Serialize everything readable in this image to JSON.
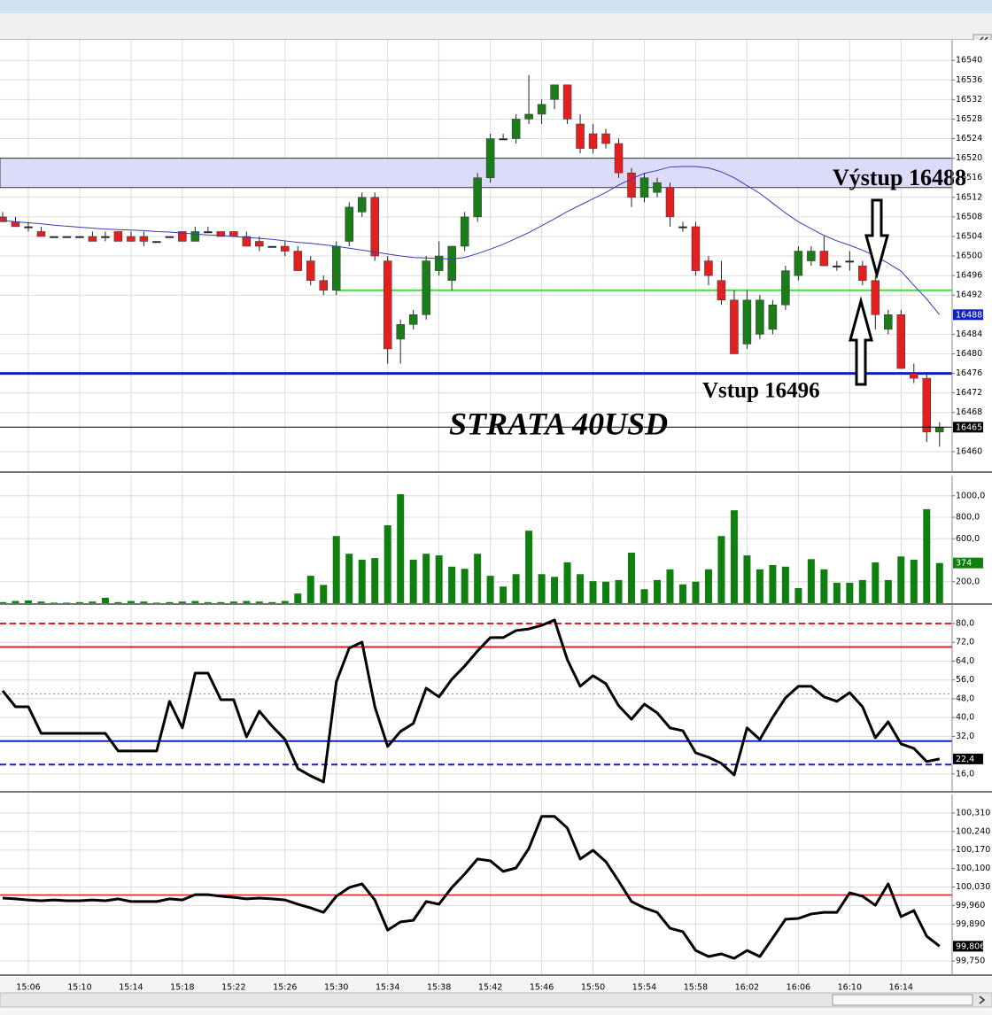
{
  "chart_data": [
    {
      "type": "candlestick",
      "open": [
        16508,
        16507,
        16506,
        16505,
        16504,
        16504,
        16504,
        16504,
        16504,
        16505,
        16504,
        16504,
        16503,
        16504,
        16505,
        16503,
        16505,
        16505,
        16505,
        16504,
        16503,
        16502,
        16502,
        16501,
        16499,
        16495,
        16493,
        16503,
        16509,
        16512,
        16499,
        16483,
        16486,
        16488,
        16497,
        16495,
        16502,
        16508,
        16516,
        16524,
        16524,
        16528,
        16529,
        16532,
        16535,
        16527,
        16525,
        16525,
        16523,
        16517,
        16512,
        16513,
        16514,
        16506,
        16506,
        16499,
        16495,
        16491,
        16482,
        16484,
        16485,
        16490,
        16496,
        16499,
        16501,
        16498,
        16499,
        16498,
        16495,
        16485,
        16488,
        16476,
        16475,
        16464
      ],
      "high": [
        16509,
        16508,
        16507,
        16506,
        16504,
        16504,
        16504,
        16505,
        16505,
        16505,
        16505,
        16505,
        16503,
        16504,
        16505,
        16506,
        16506,
        16505,
        16505,
        16505,
        16504,
        16502,
        16503,
        16502,
        16500,
        16496,
        16503,
        16511,
        16513,
        16513,
        16500,
        16487,
        16489,
        16500,
        16503,
        16502,
        16509,
        16517,
        16525,
        16525,
        16529,
        16537,
        16532,
        16535,
        16535,
        16529,
        16527,
        16526,
        16524,
        16518,
        16517,
        16516,
        16515,
        16507,
        16507,
        16500,
        16499,
        16493,
        16493,
        16492,
        16491,
        16498,
        16502,
        16502,
        16504,
        16499,
        16501,
        16499,
        16496,
        16489,
        16489,
        16478,
        16476,
        16466
      ],
      "low": [
        16507,
        16506,
        16505,
        16504,
        16504,
        16504,
        16504,
        16503,
        16503,
        16503,
        16503,
        16502,
        16503,
        16504,
        16503,
        16503,
        16505,
        16504,
        16504,
        16502,
        16501,
        16502,
        16500,
        16497,
        16494,
        16492,
        16492,
        16502,
        16508,
        16499,
        16478,
        16478,
        16485,
        16487,
        16496,
        16493,
        16501,
        16507,
        16515,
        16524,
        16523,
        16527,
        16527,
        16530,
        16527,
        16521,
        16521,
        16522,
        16516,
        16510,
        16511,
        16512,
        16506,
        16505,
        16496,
        16494,
        16490,
        16480,
        16481,
        16483,
        16484,
        16489,
        16495,
        16498,
        16498,
        16497,
        16497,
        16494,
        16485,
        16484,
        16477,
        16474,
        16462,
        16461
      ],
      "close": [
        16507,
        16506,
        16506,
        16504,
        16504,
        16504,
        16504,
        16503,
        16504,
        16503,
        16503,
        16503,
        16503,
        16504,
        16503,
        16505,
        16505,
        16504,
        16504,
        16502,
        16502,
        16502,
        16501,
        16497,
        16495,
        16493,
        16502,
        16510,
        16512,
        16500,
        16481,
        16486,
        16488,
        16499,
        16500,
        16502,
        16508,
        16516,
        16524,
        16524,
        16528,
        16529,
        16531,
        16535,
        16528,
        16522,
        16522,
        16523,
        16517,
        16512,
        16516,
        16515,
        16508,
        16506,
        16497,
        16496,
        16491,
        16480,
        16491,
        16491,
        16490,
        16497,
        16501,
        16501,
        16498,
        16498,
        16499,
        16495,
        16488,
        16488,
        16477,
        16475,
        16464,
        16465
      ],
      "up_color": "#1a7d1a",
      "down_color": "#e32020",
      "ma": {
        "color": "#3a3ab4",
        "values": [
          16507.3,
          16507.0,
          16506.8,
          16506.6,
          16506.3,
          16506.1,
          16505.9,
          16505.7,
          16505.5,
          16505.4,
          16505.3,
          16505.2,
          16505.0,
          16504.9,
          16504.7,
          16504.5,
          16504.3,
          16504.2,
          16504.0,
          16503.8,
          16503.6,
          16503.4,
          16503.1,
          16502.8,
          16502.6,
          16502.3,
          16502.0,
          16501.6,
          16501.2,
          16500.8,
          16500.4,
          16500.0,
          16499.7,
          16499.6,
          16499.5,
          16499.4,
          16499.7,
          16500.5,
          16501.4,
          16502.4,
          16503.6,
          16504.8,
          16506.2,
          16507.6,
          16509.1,
          16510.4,
          16511.7,
          16513.0,
          16514.5,
          16515.8,
          16516.9,
          16517.5,
          16518.2,
          16518.3,
          16518.3,
          16518.0,
          16517.2,
          16516.0,
          16514.4,
          16512.8,
          16510.8,
          16508.8,
          16507.0,
          16505.6,
          16504.2,
          16503.1,
          16502.2,
          16501.2,
          16500.0,
          16498.5,
          16496.9,
          16494.0,
          16491.2,
          16488
        ]
      },
      "ylim": [
        16456,
        16544.2
      ],
      "yticks": [
        16460,
        16468,
        16472,
        16476,
        16480,
        16484,
        16492,
        16496,
        16500,
        16504,
        16508,
        16512,
        16516,
        16520,
        16524,
        16528,
        16532,
        16536,
        16540
      ],
      "bands": [
        {
          "range": [
            16514,
            16520
          ],
          "color": "#dcdcfa"
        }
      ],
      "hlines": [
        {
          "value": 16493,
          "color": "#33e633",
          "width": 2
        },
        {
          "value": 16476,
          "color": "#1020c8",
          "width": 3
        }
      ],
      "annotations": [
        {
          "text": "Výstup 16488"
        },
        {
          "text": "Vstup 16496"
        },
        {
          "text": "STRATA 40USD"
        }
      ],
      "grid": true
    },
    {
      "type": "bar",
      "values": [
        10,
        20,
        25,
        15,
        5,
        5,
        10,
        15,
        50,
        10,
        20,
        15,
        5,
        10,
        15,
        20,
        10,
        10,
        15,
        20,
        15,
        10,
        20,
        90,
        255,
        170,
        625,
        460,
        405,
        420,
        725,
        1015,
        405,
        460,
        445,
        340,
        320,
        460,
        255,
        155,
        270,
        675,
        270,
        245,
        380,
        270,
        205,
        200,
        215,
        470,
        130,
        215,
        315,
        175,
        200,
        315,
        625,
        865,
        445,
        315,
        355,
        340,
        140,
        410,
        315,
        190,
        190,
        215,
        380,
        215,
        435,
        405,
        875,
        374
      ],
      "color": "#0f800f",
      "ylim": [
        0,
        1188
      ],
      "yticks": [
        {
          "value": 200,
          "label": "200,0"
        },
        {
          "value": 600,
          "label": "600,0"
        },
        {
          "value": 800,
          "label": "800,0"
        },
        {
          "value": 1000,
          "label": "1000,0"
        }
      ],
      "grid": true
    },
    {
      "type": "line",
      "values": [
        51.4,
        44.6,
        44.6,
        33.3,
        33.3,
        33.3,
        33.3,
        33.3,
        33.3,
        25.8,
        25.8,
        25.8,
        25.8,
        46.9,
        35.6,
        58.9,
        58.9,
        47.6,
        47.6,
        31.8,
        42.7,
        36.3,
        30.7,
        18.3,
        15.2,
        12.6,
        55.2,
        69.5,
        72.1,
        44.6,
        27.7,
        34.1,
        37.5,
        52.5,
        48.8,
        56.3,
        61.9,
        68.3,
        74.0,
        74.0,
        77.0,
        77.7,
        79.2,
        81.5,
        64.6,
        53.3,
        57.8,
        54.4,
        45.0,
        39.3,
        45.7,
        42.0,
        35.6,
        34.4,
        25.0,
        23.1,
        20.5,
        15.6,
        35.6,
        30.7,
        40.1,
        48.4,
        53.3,
        53.3,
        48.8,
        46.9,
        50.6,
        44.6,
        31.4,
        38.2,
        28.8,
        26.9,
        21.3,
        22.4
      ],
      "value_labels": [
        null,
        null,
        null,
        null,
        null,
        null,
        null,
        null,
        null,
        null,
        null,
        null,
        null,
        null,
        null,
        null,
        null,
        null,
        null,
        null,
        null,
        null,
        null,
        null,
        null,
        null,
        null,
        null,
        null,
        null,
        null,
        null,
        null,
        null,
        null,
        null,
        null,
        null,
        null,
        null,
        null,
        null,
        null,
        null,
        null,
        null,
        null,
        null,
        null,
        null,
        null,
        null,
        null,
        null,
        null,
        null,
        null,
        null,
        null,
        null,
        null,
        null,
        null,
        null,
        null,
        null,
        null,
        null,
        null,
        null,
        null,
        null,
        null,
        "22,4"
      ],
      "color": "#000000",
      "ylim": [
        8.8,
        87.9
      ],
      "yticks": [
        {
          "value": 16,
          "label": "16,0"
        },
        {
          "value": 32,
          "label": "32,0"
        },
        {
          "value": 40,
          "label": "40,0"
        },
        {
          "value": 48,
          "label": "48,0"
        },
        {
          "value": 56,
          "label": "56,0"
        },
        {
          "value": 64,
          "label": "64,0"
        },
        {
          "value": 72,
          "label": "72,0"
        },
        {
          "value": 80,
          "label": "80,0"
        }
      ],
      "hlines": [
        {
          "value": 80,
          "color": "#e02020",
          "width": 2,
          "style": "dashed"
        },
        {
          "value": 70,
          "color": "#e02020",
          "width": 2,
          "style": "solid"
        },
        {
          "value": 50,
          "color": "#888888",
          "width": 1,
          "style": "dotted"
        },
        {
          "value": 30,
          "color": "#1020c8",
          "width": 2,
          "style": "solid"
        },
        {
          "value": 20,
          "color": "#1020c8",
          "width": 2,
          "style": "dashed"
        }
      ],
      "grid": true
    },
    {
      "type": "line",
      "values": [
        99.988,
        99.985,
        99.981,
        99.978,
        99.981,
        99.978,
        99.978,
        99.981,
        99.978,
        99.985,
        99.975,
        99.975,
        99.975,
        99.985,
        99.981,
        100.001,
        100.001,
        99.995,
        99.991,
        99.985,
        99.988,
        99.985,
        99.981,
        99.965,
        99.951,
        99.934,
        99.995,
        100.028,
        100.042,
        99.981,
        99.867,
        99.898,
        99.904,
        99.975,
        99.965,
        100.028,
        100.079,
        100.136,
        100.129,
        100.089,
        100.102,
        100.176,
        100.297,
        100.297,
        100.253,
        100.136,
        100.169,
        100.126,
        100.052,
        99.975,
        99.951,
        99.934,
        99.874,
        99.861,
        99.79,
        99.767,
        99.777,
        99.76,
        99.79,
        99.767,
        99.837,
        99.908,
        99.911,
        99.928,
        99.934,
        99.934,
        100.008,
        99.995,
        99.961,
        100.042,
        99.918,
        99.941,
        99.844,
        99.806
      ],
      "value_labels": [
        null,
        null,
        null,
        null,
        null,
        null,
        null,
        null,
        null,
        null,
        null,
        null,
        null,
        null,
        null,
        null,
        null,
        null,
        null,
        null,
        null,
        null,
        null,
        null,
        null,
        null,
        null,
        null,
        null,
        null,
        null,
        null,
        null,
        null,
        null,
        null,
        null,
        null,
        null,
        null,
        null,
        null,
        null,
        null,
        null,
        null,
        null,
        null,
        null,
        null,
        null,
        null,
        null,
        null,
        null,
        null,
        null,
        null,
        null,
        null,
        null,
        null,
        null,
        null,
        null,
        null,
        null,
        null,
        null,
        null,
        null,
        null,
        null,
        "99,806"
      ],
      "color": "#000000",
      "ylim": [
        99.7,
        100.38
      ],
      "yticks": [
        {
          "value": 99.75,
          "label": "99,750"
        },
        {
          "value": 99.89,
          "label": "99,890"
        },
        {
          "value": 99.96,
          "label": "99,960"
        },
        {
          "value": 100.03,
          "label": "100,030"
        },
        {
          "value": 100.1,
          "label": "100,100"
        },
        {
          "value": 100.17,
          "label": "100,170"
        },
        {
          "value": 100.24,
          "label": "100,240"
        },
        {
          "value": 100.31,
          "label": "100,310"
        }
      ],
      "hlines": [
        {
          "value": 100,
          "color": "#e02020",
          "width": 1.5,
          "style": "solid"
        }
      ],
      "categories": [
        null,
        null,
        "15:06",
        null,
        null,
        null,
        "15:10",
        null,
        null,
        null,
        "15:14",
        null,
        null,
        null,
        "15:18",
        null,
        null,
        null,
        "15:22",
        null,
        null,
        null,
        "15:26",
        null,
        null,
        null,
        "15:30",
        null,
        null,
        null,
        "15:34",
        null,
        null,
        null,
        "15:38",
        null,
        null,
        null,
        "15:42",
        null,
        null,
        null,
        "15:46",
        null,
        null,
        null,
        "15:50",
        null,
        null,
        null,
        "15:54",
        null,
        null,
        null,
        "15:58",
        null,
        null,
        null,
        "16:02",
        null,
        null,
        null,
        "16:06",
        null,
        null,
        null,
        "16:10",
        null,
        null,
        null,
        "16:14",
        null,
        null,
        null
      ],
      "grid": true
    }
  ]
}
